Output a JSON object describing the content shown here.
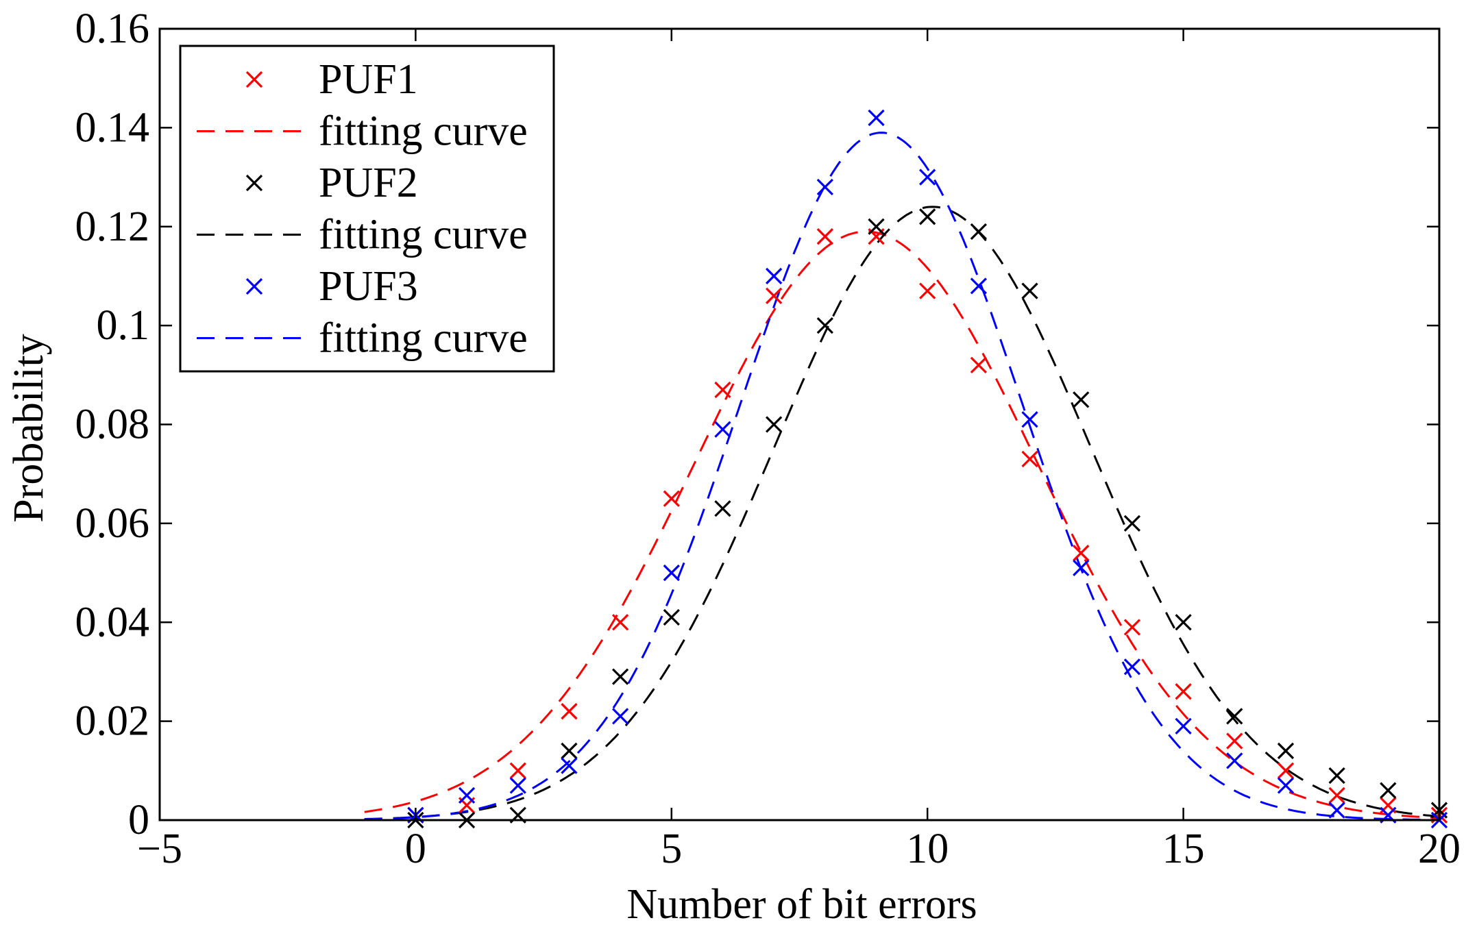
{
  "chart_data": {
    "type": "scatter",
    "title": "",
    "xlabel": "Number of bit errors",
    "ylabel": "Probability",
    "xlim": [
      -5,
      20
    ],
    "ylim": [
      0,
      0.16
    ],
    "grid": false,
    "legend_position": "top-left",
    "xticks": [
      -5,
      0,
      5,
      10,
      15,
      20
    ],
    "xtick_labels": [
      "−5",
      "0",
      "5",
      "10",
      "15",
      "20"
    ],
    "yticks": [
      0,
      0.02,
      0.04,
      0.06,
      0.08,
      0.1,
      0.12,
      0.14,
      0.16
    ],
    "ytick_labels": [
      "0",
      "0.02",
      "0.04",
      "0.06",
      "0.08",
      "0.1",
      "0.12",
      "0.14",
      "0.16"
    ],
    "x": [
      0,
      1,
      2,
      3,
      4,
      5,
      6,
      7,
      8,
      9,
      10,
      11,
      12,
      13,
      14,
      15,
      16,
      17,
      18,
      19,
      20
    ],
    "series": [
      {
        "name": "PUF1",
        "color": "#ff0000",
        "marker": "x",
        "values": [
          0.001,
          0.003,
          0.01,
          0.022,
          0.04,
          0.065,
          0.087,
          0.106,
          0.118,
          0.118,
          0.107,
          0.092,
          0.073,
          0.054,
          0.039,
          0.026,
          0.016,
          0.01,
          0.005,
          0.003,
          0.001
        ],
        "fit": {
          "name": "fitting curve",
          "style": "dashed",
          "model": "gaussian",
          "peak": 0.119,
          "mean": 8.8,
          "sigma": 3.35,
          "x_range": [
            -1,
            20
          ]
        }
      },
      {
        "name": "PUF2",
        "color": "#000000",
        "marker": "x",
        "values": [
          0.0,
          0.0,
          0.001,
          0.014,
          0.029,
          0.041,
          0.063,
          0.08,
          0.1,
          0.12,
          0.122,
          0.119,
          0.107,
          0.085,
          0.06,
          0.04,
          0.021,
          0.014,
          0.009,
          0.006,
          0.002
        ],
        "fit": {
          "name": "fitting curve",
          "style": "dashed",
          "model": "gaussian",
          "peak": 0.124,
          "mean": 10.1,
          "sigma": 3.1,
          "x_range": [
            -1,
            20
          ]
        }
      },
      {
        "name": "PUF3",
        "color": "#0000ff",
        "marker": "x",
        "values": [
          0.001,
          0.005,
          0.007,
          0.011,
          0.021,
          0.05,
          0.079,
          0.11,
          0.128,
          0.142,
          0.13,
          0.108,
          0.081,
          0.051,
          0.031,
          0.019,
          0.012,
          0.007,
          0.002,
          0.001,
          0.0
        ],
        "fit": {
          "name": "fitting curve",
          "style": "dashed",
          "model": "gaussian",
          "peak": 0.139,
          "mean": 9.1,
          "sigma": 2.75,
          "x_range": [
            -1,
            20
          ]
        }
      }
    ],
    "legend": [
      {
        "label": "PUF1",
        "kind": "marker",
        "color": "#ff0000"
      },
      {
        "label": "fitting curve",
        "kind": "line",
        "color": "#ff0000"
      },
      {
        "label": "PUF2",
        "kind": "marker",
        "color": "#000000"
      },
      {
        "label": "fitting curve",
        "kind": "line",
        "color": "#000000"
      },
      {
        "label": "PUF3",
        "kind": "marker",
        "color": "#0000ff"
      },
      {
        "label": "fitting curve",
        "kind": "line",
        "color": "#0000ff"
      }
    ]
  }
}
